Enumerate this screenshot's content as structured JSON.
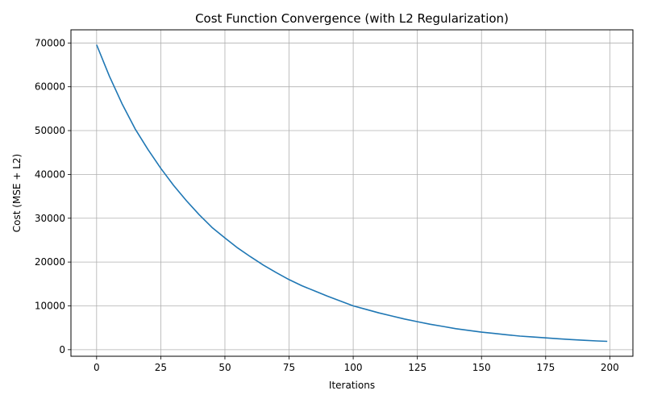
{
  "chart_data": {
    "type": "line",
    "title": "Cost Function Convergence (with L2 Regularization)",
    "xlabel": "Iterations",
    "ylabel": "Cost (MSE + L2)",
    "xlim": [
      -10,
      209
    ],
    "ylim": [
      -1500,
      73000
    ],
    "xticks": [
      0,
      25,
      50,
      75,
      100,
      125,
      150,
      175,
      200
    ],
    "yticks": [
      0,
      10000,
      20000,
      30000,
      40000,
      50000,
      60000,
      70000
    ],
    "grid": true,
    "colors": {
      "line": "#1f77b4",
      "grid": "#b0b0b0"
    },
    "series": [
      {
        "x": [
          0,
          5,
          10,
          15,
          20,
          25,
          30,
          35,
          40,
          45,
          50,
          55,
          60,
          65,
          70,
          75,
          80,
          85,
          90,
          95,
          100,
          105,
          110,
          115,
          120,
          125,
          130,
          135,
          140,
          145,
          150,
          155,
          160,
          165,
          170,
          175,
          180,
          185,
          190,
          195,
          199
        ],
        "y": [
          69600,
          62400,
          56000,
          50400,
          45700,
          41400,
          37500,
          34000,
          30800,
          27900,
          25500,
          23200,
          21200,
          19300,
          17600,
          16000,
          14600,
          13400,
          12200,
          11100,
          10000,
          9200,
          8400,
          7700,
          7000,
          6400,
          5800,
          5300,
          4800,
          4400,
          4000,
          3700,
          3400,
          3100,
          2900,
          2700,
          2500,
          2300,
          2150,
          2000,
          1900
        ]
      }
    ]
  }
}
